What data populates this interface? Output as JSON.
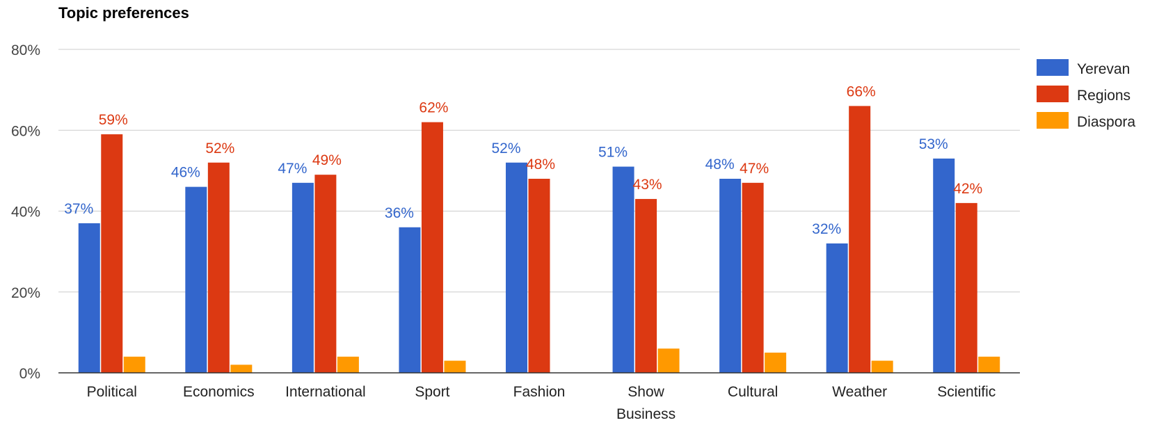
{
  "chart_data": {
    "type": "bar",
    "title": "Topic preferences",
    "categories": [
      "Political",
      "Economics",
      "International",
      "Sport",
      "Fashion",
      "Show Business",
      "Cultural",
      "Weather",
      "Scientific"
    ],
    "series": [
      {
        "name": "Yerevan",
        "color": "#3366cc",
        "values": [
          37,
          46,
          47,
          36,
          52,
          51,
          48,
          32,
          53
        ],
        "labels": [
          "37%",
          "46%",
          "47%",
          "36%",
          "52%",
          "51%",
          "48%",
          "32%",
          "53%"
        ]
      },
      {
        "name": "Regions",
        "color": "#dc3912",
        "values": [
          59,
          52,
          49,
          62,
          48,
          43,
          47,
          66,
          42
        ],
        "labels": [
          "59%",
          "52%",
          "49%",
          "62%",
          "48%",
          "43%",
          "47%",
          "66%",
          "42%"
        ]
      },
      {
        "name": "Diaspora",
        "color": "#ff9900",
        "values": [
          4,
          2,
          4,
          3,
          0,
          6,
          5,
          3,
          4
        ]
      }
    ],
    "ylim": [
      0,
      80
    ],
    "yticks": [
      "0%",
      "20%",
      "40%",
      "60%",
      "80%"
    ],
    "ytick_values": [
      0,
      20,
      40,
      60,
      80
    ],
    "grid": true,
    "legend_position": "right",
    "xlabel": "",
    "ylabel": ""
  }
}
